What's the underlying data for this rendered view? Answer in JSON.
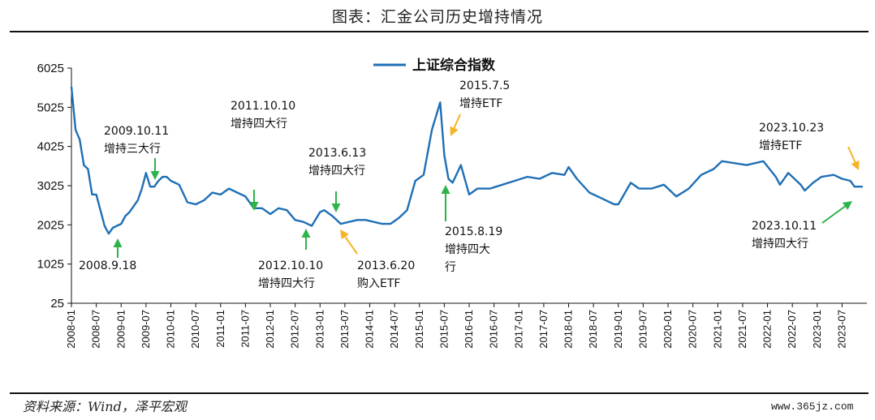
{
  "header": {
    "title": "图表：汇金公司历史增持情况"
  },
  "footer": {
    "source": "资料来源：Wind，泽平宏观",
    "watermark": "www.365jz.com"
  },
  "colors": {
    "line": "#1f6fb5",
    "green_arrow": "#2db34a",
    "orange_arrow": "#f5b326"
  },
  "chart_data": {
    "type": "line",
    "series": [
      {
        "name": "上证综合指数",
        "x": [
          "2008-01",
          "2008-02",
          "2008-03",
          "2008-04",
          "2008-05",
          "2008-06",
          "2008-07",
          "2008-08",
          "2008-09",
          "2008-10",
          "2008-11",
          "2008-12",
          "2009-01",
          "2009-02",
          "2009-03",
          "2009-04",
          "2009-05",
          "2009-06",
          "2009-07",
          "2009-08",
          "2009-09",
          "2009-10",
          "2009-11",
          "2009-12",
          "2010-01",
          "2010-03",
          "2010-05",
          "2010-07",
          "2010-09",
          "2010-11",
          "2011-01",
          "2011-03",
          "2011-05",
          "2011-07",
          "2011-09",
          "2011-11",
          "2012-01",
          "2012-03",
          "2012-05",
          "2012-07",
          "2012-09",
          "2012-11",
          "2013-01",
          "2013-02",
          "2013-04",
          "2013-06",
          "2013-08",
          "2013-10",
          "2013-12",
          "2014-02",
          "2014-04",
          "2014-06",
          "2014-08",
          "2014-10",
          "2014-12",
          "2015-02",
          "2015-04",
          "2015-06",
          "2015-07",
          "2015-08",
          "2015-09",
          "2015-11",
          "2016-01",
          "2016-03",
          "2016-06",
          "2016-09",
          "2016-12",
          "2017-03",
          "2017-06",
          "2017-09",
          "2017-12",
          "2018-01",
          "2018-03",
          "2018-06",
          "2018-09",
          "2018-12",
          "2019-01",
          "2019-04",
          "2019-06",
          "2019-09",
          "2019-12",
          "2020-03",
          "2020-06",
          "2020-09",
          "2020-12",
          "2021-02",
          "2021-05",
          "2021-08",
          "2021-12",
          "2022-03",
          "2022-04",
          "2022-06",
          "2022-09",
          "2022-10",
          "2022-12",
          "2023-02",
          "2023-05",
          "2023-07",
          "2023-09",
          "2023-10",
          "2023-12"
        ],
        "values": [
          5550,
          4450,
          4200,
          3550,
          3450,
          2800,
          2800,
          2400,
          2000,
          1800,
          1950,
          2000,
          2050,
          2250,
          2350,
          2500,
          2650,
          2950,
          3350,
          3000,
          3000,
          3150,
          3250,
          3250,
          3150,
          3050,
          2600,
          2550,
          2650,
          2850,
          2800,
          2950,
          2850,
          2750,
          2450,
          2450,
          2300,
          2450,
          2400,
          2150,
          2100,
          2000,
          2350,
          2400,
          2250,
          2050,
          2100,
          2150,
          2150,
          2100,
          2050,
          2050,
          2200,
          2400,
          3150,
          3300,
          4450,
          5150,
          3800,
          3200,
          3100,
          3550,
          2800,
          2950,
          2950,
          3050,
          3150,
          3250,
          3200,
          3350,
          3300,
          3500,
          3200,
          2850,
          2700,
          2550,
          2550,
          3100,
          2950,
          2950,
          3050,
          2750,
          2950,
          3300,
          3450,
          3650,
          3600,
          3550,
          3650,
          3250,
          3050,
          3350,
          3050,
          2900,
          3100,
          3250,
          3300,
          3200,
          3150,
          3000,
          3000
        ]
      }
    ],
    "title": "",
    "xlabel": "",
    "ylabel": "",
    "ylim": [
      25,
      6025
    ],
    "yticks": [
      "6025",
      "5025",
      "4025",
      "3025",
      "2025",
      "1025",
      "25"
    ],
    "xticks": [
      "2008-01",
      "2008-07",
      "2009-01",
      "2009-07",
      "2010-01",
      "2010-07",
      "2011-01",
      "2011-07",
      "2012-01",
      "2012-07",
      "2013-01",
      "2013-07",
      "2014-01",
      "2014-07",
      "2015-01",
      "2015-07",
      "2016-01",
      "2016-07",
      "2017-01",
      "2017-07",
      "2018-01",
      "2018-07",
      "2019-01",
      "2019-07",
      "2020-01",
      "2020-07",
      "2021-01",
      "2021-07",
      "2022-01",
      "2022-07",
      "2023-01",
      "2023-07"
    ],
    "legend": {
      "entries": [
        "上证综合指数"
      ],
      "placement": "top-center"
    },
    "grid": false,
    "annotations": [
      {
        "lines": [
          "2008.9.18"
        ],
        "color": "green",
        "date": "2008-09"
      },
      {
        "lines": [
          "2009.10.11",
          "增持三大行"
        ],
        "color": "green",
        "date": "2009-10"
      },
      {
        "lines": [
          "2011.10.10",
          "增持四大行"
        ],
        "color": "green",
        "date": "2011-10"
      },
      {
        "lines": [
          "2012.10.10",
          "增持四大行"
        ],
        "color": "green",
        "date": "2012-10"
      },
      {
        "lines": [
          "2013.6.13",
          "增持四大行"
        ],
        "color": "green",
        "date": "2013-06"
      },
      {
        "lines": [
          "2013.6.20",
          "购入ETF"
        ],
        "color": "orange",
        "date": "2013-06"
      },
      {
        "lines": [
          "2015.7.5",
          "增持ETF"
        ],
        "color": "orange",
        "date": "2015-07"
      },
      {
        "lines": [
          "2015.8.19",
          "增持四大",
          "行"
        ],
        "color": "green",
        "date": "2015-08"
      },
      {
        "lines": [
          "2023.10.23",
          "增持ETF"
        ],
        "color": "orange",
        "date": "2023-10"
      },
      {
        "lines": [
          "2023.10.11",
          "增持四大行"
        ],
        "color": "green",
        "date": "2023-10"
      }
    ]
  }
}
